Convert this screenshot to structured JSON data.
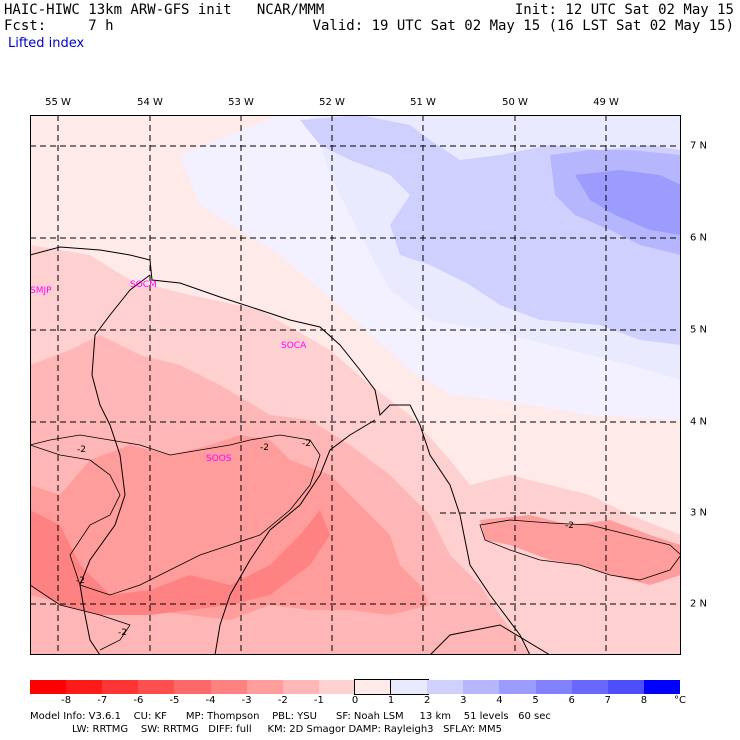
{
  "header": {
    "left_line1": "HAIC-HIWC 13km ARW-GFS init   NCAR/MMM",
    "left_line2": "Fcst:     7 h",
    "right_line1": "Init: 12 UTC Sat 02 May 15",
    "right_line2": "Valid: 19 UTC Sat 02 May 15 (16 LST Sat 02 May 15)",
    "field": "Lifted index"
  },
  "lon_labels": [
    "55 W",
    "54 W",
    "53 W",
    "52 W",
    "51 W",
    "50 W",
    "49 W"
  ],
  "lat_labels": [
    "7 N",
    "6 N",
    "5 N",
    "4 N",
    "3 N",
    "2 N"
  ],
  "stations": [
    "SMJP",
    "SOCM",
    "SOCA",
    "SOOS"
  ],
  "contour_labels": [
    "-2",
    "-2",
    "-2",
    "-2",
    "-2",
    "-2"
  ],
  "colorbar": {
    "ticks": [
      "-8",
      "-7",
      "-6",
      "-5",
      "-4",
      "-3",
      "-2",
      "-1",
      "0",
      "1",
      "2",
      "3",
      "4",
      "5",
      "6",
      "7",
      "8"
    ],
    "unit": "°C",
    "colors": [
      "#ff0000",
      "#ff1a1a",
      "#ff3434",
      "#ff4e4e",
      "#ff6868",
      "#ff8282",
      "#ff9c9c",
      "#ffb6b6",
      "#ffd0d0",
      "#ffeaea",
      "#eaeaff",
      "#d0d0ff",
      "#b6b6ff",
      "#9c9cff",
      "#8282ff",
      "#6868ff",
      "#4e4eff",
      "#0000ff"
    ]
  },
  "footer": {
    "line1": "Model Info: V3.6.1    CU: KF      MP: Thompson    PBL: YSU      SF: Noah LSM     13 km    51 levels   60 sec",
    "line2": "LW: RRTMG    SW: RRTMG   DIFF: full     KM: 2D Smagor DAMP: Rayleigh3   SFLAY: MM5"
  }
}
